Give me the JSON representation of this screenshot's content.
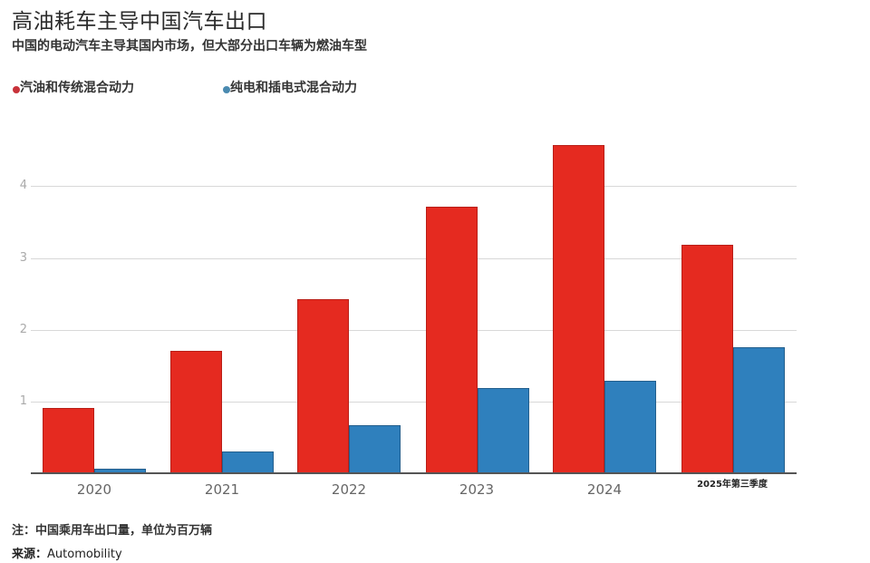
{
  "header": {
    "title": "高油耗车主导中国汽车出口",
    "subtitle": "中国的电动汽车主导其国内市场，但大部分出口车辆为燃油车型"
  },
  "legend": [
    {
      "label": "汽油和传统混合动力",
      "color": "#e52a20"
    },
    {
      "label": "纯电和插电式混合动力",
      "color": "#2f80bd"
    }
  ],
  "footer": {
    "note": "注：中国乘用车出口量，单位为百万辆",
    "source_label": "来源：",
    "source_value": "Automobility"
  },
  "axis": {
    "y_ticks": [
      "1",
      "2",
      "3",
      "4"
    ]
  },
  "chart_data": {
    "type": "bar",
    "title": "高油耗车主导中国汽车出口",
    "subtitle": "中国的电动汽车主导其国内市场，但大部分出口车辆为燃油车型",
    "categories": [
      "2020",
      "2021",
      "2022",
      "2023",
      "2024",
      "2025年第三季度"
    ],
    "series": [
      {
        "name": "汽油和传统混合动力",
        "color": "#e52a20",
        "values": [
          0.91,
          1.7,
          2.42,
          3.71,
          4.57,
          3.18
        ]
      },
      {
        "name": "纯电和插电式混合动力",
        "color": "#2f80bd",
        "values": [
          0.06,
          0.3,
          0.67,
          1.19,
          1.28,
          1.75
        ]
      }
    ],
    "xlabel": "",
    "ylabel": "百万辆",
    "ylim": [
      0,
      4.8
    ],
    "yticks": [
      1,
      2,
      3,
      4
    ],
    "grid": true,
    "legend_position": "top-left",
    "annotations": [
      "注：中国乘用车出口量，单位为百万辆",
      "来源：Automobility"
    ]
  }
}
